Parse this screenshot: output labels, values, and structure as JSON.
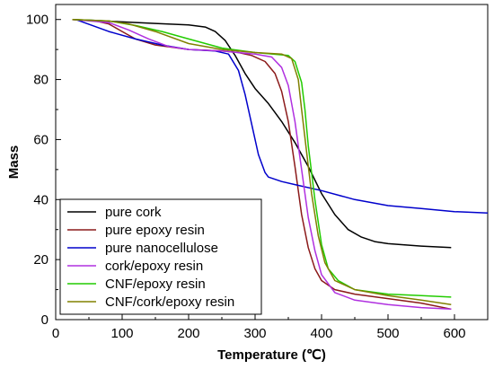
{
  "chart_data": {
    "type": "line",
    "title": "",
    "xlabel": "Temperature (℃)",
    "ylabel": "Mass",
    "xlim": [
      0,
      650
    ],
    "ylim": [
      0,
      105
    ],
    "xticks": [
      0,
      100,
      200,
      300,
      400,
      500,
      600
    ],
    "yticks": [
      0,
      20,
      40,
      60,
      80,
      100
    ],
    "legend_position": "bottom-left",
    "grid": false,
    "series": [
      {
        "name": "pure cork",
        "color": "#000000",
        "points": [
          [
            25,
            100
          ],
          [
            60,
            99.7
          ],
          [
            100,
            99.2
          ],
          [
            150,
            98.7
          ],
          [
            200,
            98.2
          ],
          [
            225,
            97.5
          ],
          [
            240,
            96
          ],
          [
            255,
            93
          ],
          [
            270,
            88
          ],
          [
            285,
            82
          ],
          [
            300,
            77
          ],
          [
            320,
            72
          ],
          [
            340,
            66
          ],
          [
            360,
            59
          ],
          [
            380,
            51
          ],
          [
            400,
            42
          ],
          [
            420,
            35
          ],
          [
            440,
            30
          ],
          [
            460,
            27.5
          ],
          [
            480,
            26
          ],
          [
            500,
            25.3
          ],
          [
            550,
            24.5
          ],
          [
            595,
            24
          ]
        ]
      },
      {
        "name": "pure epoxy resin",
        "color": "#8b1a1a",
        "points": [
          [
            25,
            100
          ],
          [
            60,
            99.5
          ],
          [
            80,
            98.5
          ],
          [
            100,
            96
          ],
          [
            120,
            93.5
          ],
          [
            150,
            91.5
          ],
          [
            200,
            90
          ],
          [
            250,
            89.5
          ],
          [
            275,
            89
          ],
          [
            295,
            88
          ],
          [
            315,
            86
          ],
          [
            330,
            82
          ],
          [
            340,
            76
          ],
          [
            350,
            66
          ],
          [
            360,
            51
          ],
          [
            370,
            35
          ],
          [
            380,
            24
          ],
          [
            390,
            17
          ],
          [
            400,
            13
          ],
          [
            420,
            10
          ],
          [
            450,
            8.5
          ],
          [
            500,
            7
          ],
          [
            550,
            5.5
          ],
          [
            595,
            3.5
          ]
        ]
      },
      {
        "name": "pure nanocellulose",
        "color": "#0000cc",
        "points": [
          [
            30,
            100
          ],
          [
            80,
            96
          ],
          [
            120,
            93.5
          ],
          [
            160,
            91.5
          ],
          [
            200,
            90
          ],
          [
            240,
            89.5
          ],
          [
            260,
            88.5
          ],
          [
            275,
            83
          ],
          [
            285,
            75
          ],
          [
            295,
            65
          ],
          [
            305,
            55
          ],
          [
            315,
            49
          ],
          [
            320,
            47.5
          ],
          [
            340,
            46
          ],
          [
            360,
            45
          ],
          [
            400,
            43
          ],
          [
            450,
            40
          ],
          [
            500,
            38
          ],
          [
            550,
            37
          ],
          [
            600,
            36
          ],
          [
            650,
            35.5
          ]
        ]
      },
      {
        "name": "cork/epoxy resin",
        "color": "#b030e0",
        "points": [
          [
            25,
            100
          ],
          [
            80,
            99
          ],
          [
            110,
            96.5
          ],
          [
            140,
            93.5
          ],
          [
            170,
            91
          ],
          [
            200,
            90
          ],
          [
            250,
            89.5
          ],
          [
            300,
            88.5
          ],
          [
            325,
            87.5
          ],
          [
            340,
            84
          ],
          [
            350,
            78
          ],
          [
            360,
            66
          ],
          [
            370,
            50
          ],
          [
            380,
            34
          ],
          [
            390,
            23
          ],
          [
            400,
            15
          ],
          [
            420,
            9
          ],
          [
            450,
            6.5
          ],
          [
            500,
            5
          ],
          [
            550,
            4
          ],
          [
            595,
            3.5
          ]
        ]
      },
      {
        "name": "CNF/epoxy resin",
        "color": "#22cc00",
        "points": [
          [
            25,
            100
          ],
          [
            80,
            99.5
          ],
          [
            120,
            98
          ],
          [
            160,
            96
          ],
          [
            200,
            93.5
          ],
          [
            250,
            90.5
          ],
          [
            300,
            89
          ],
          [
            350,
            88
          ],
          [
            360,
            86
          ],
          [
            370,
            79
          ],
          [
            375,
            70
          ],
          [
            380,
            58
          ],
          [
            390,
            40
          ],
          [
            400,
            25
          ],
          [
            410,
            17
          ],
          [
            425,
            13
          ],
          [
            450,
            10
          ],
          [
            500,
            8.5
          ],
          [
            550,
            8
          ],
          [
            595,
            7.5
          ]
        ]
      },
      {
        "name": "CNF/cork/epoxy resin",
        "color": "#808000",
        "points": [
          [
            25,
            100
          ],
          [
            80,
            99.5
          ],
          [
            110,
            98.5
          ],
          [
            150,
            96
          ],
          [
            200,
            92
          ],
          [
            250,
            90
          ],
          [
            300,
            89
          ],
          [
            340,
            88.5
          ],
          [
            355,
            87
          ],
          [
            365,
            80
          ],
          [
            370,
            70
          ],
          [
            378,
            55
          ],
          [
            385,
            42
          ],
          [
            395,
            28
          ],
          [
            405,
            19
          ],
          [
            420,
            13
          ],
          [
            450,
            10
          ],
          [
            500,
            8
          ],
          [
            550,
            6.5
          ],
          [
            595,
            5
          ]
        ]
      }
    ]
  }
}
